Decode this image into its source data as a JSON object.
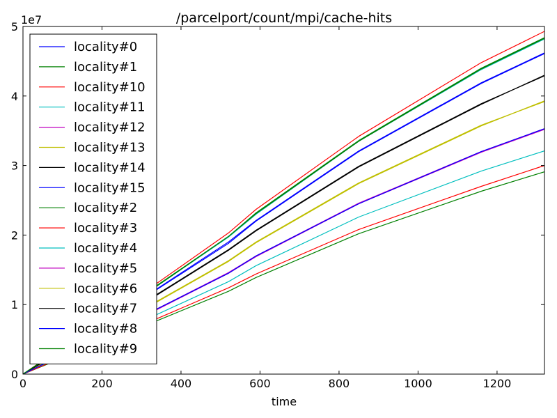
{
  "chart_data": {
    "type": "line",
    "title": "/parcelport/count/mpi/cache-hits",
    "xlabel": "time",
    "ylabel": "",
    "y_offset_label": "1e7",
    "xlim": [
      0,
      1320
    ],
    "ylim": [
      0,
      50000000
    ],
    "y_tick_scale": 10000000,
    "xticks": [
      0,
      200,
      400,
      600,
      800,
      1000,
      1200
    ],
    "yticks": [
      0,
      10000000,
      20000000,
      30000000,
      40000000,
      50000000
    ],
    "xtick_labels": [
      "0",
      "200",
      "400",
      "600",
      "800",
      "1000",
      "1200"
    ],
    "ytick_labels": [
      "0",
      "1",
      "2",
      "3",
      "4",
      "5"
    ],
    "grid": false,
    "legend_position": "upper-left",
    "series": [
      {
        "name": "locality#0",
        "color": "#0000ff",
        "x": [
          0,
          100,
          340,
          520,
          590,
          850,
          1160,
          1320
        ],
        "y": [
          0,
          3600000,
          12200000,
          18800000,
          22000000,
          32000000,
          41800000,
          46100000
        ]
      },
      {
        "name": "locality#1",
        "color": "#008000",
        "x": [
          0,
          100,
          340,
          520,
          590,
          850,
          1160,
          1320
        ],
        "y": [
          0,
          3800000,
          12800000,
          19800000,
          23200000,
          33600000,
          44000000,
          48400000
        ]
      },
      {
        "name": "locality#10",
        "color": "#ff0000",
        "x": [
          0,
          100,
          340,
          520,
          590,
          850,
          1160,
          1320
        ],
        "y": [
          0,
          3900000,
          13100000,
          20300000,
          23700000,
          34200000,
          44800000,
          49300000
        ]
      },
      {
        "name": "locality#11",
        "color": "#00bfbf",
        "x": [
          0,
          100,
          340,
          520,
          590,
          850,
          1160,
          1320
        ],
        "y": [
          0,
          2600000,
          8600000,
          13300000,
          15600000,
          22600000,
          29200000,
          32100000
        ]
      },
      {
        "name": "locality#12",
        "color": "#bf00bf",
        "x": [
          0,
          100,
          340,
          520,
          590,
          850,
          1160,
          1320
        ],
        "y": [
          0,
          2800000,
          9400000,
          14600000,
          17000000,
          24600000,
          32000000,
          35300000
        ]
      },
      {
        "name": "locality#13",
        "color": "#bfbf00",
        "x": [
          0,
          100,
          340,
          520,
          590,
          850,
          1160,
          1320
        ],
        "y": [
          0,
          3100000,
          10500000,
          16300000,
          19000000,
          27500000,
          35800000,
          39200000
        ]
      },
      {
        "name": "locality#14",
        "color": "#000000",
        "x": [
          0,
          100,
          340,
          520,
          590,
          850,
          1160,
          1320
        ],
        "y": [
          0,
          3400000,
          11400000,
          17800000,
          20600000,
          29800000,
          38800000,
          43000000
        ]
      },
      {
        "name": "locality#15",
        "color": "#0000ff",
        "x": [
          0,
          100,
          340,
          520,
          590,
          850,
          1160,
          1320
        ],
        "y": [
          0,
          3700000,
          12300000,
          19000000,
          22100000,
          32100000,
          41900000,
          46200000
        ]
      },
      {
        "name": "locality#2",
        "color": "#008000",
        "x": [
          0,
          100,
          340,
          520,
          590,
          850,
          1160,
          1320
        ],
        "y": [
          0,
          2300000,
          7700000,
          11900000,
          13900000,
          20200000,
          26300000,
          29100000
        ]
      },
      {
        "name": "locality#3",
        "color": "#ff0000",
        "x": [
          0,
          100,
          340,
          520,
          590,
          850,
          1160,
          1320
        ],
        "y": [
          0,
          2400000,
          8000000,
          12400000,
          14400000,
          20800000,
          27000000,
          30000000
        ]
      },
      {
        "name": "locality#4",
        "color": "#00bfbf",
        "x": [
          0,
          100,
          340,
          520,
          590,
          850,
          1160,
          1320
        ],
        "y": [
          0,
          3800000,
          12700000,
          19700000,
          23000000,
          33500000,
          43800000,
          48200000
        ]
      },
      {
        "name": "locality#5",
        "color": "#bf00bf",
        "x": [
          0,
          100,
          340,
          520,
          590,
          850,
          1160,
          1320
        ],
        "y": [
          0,
          2800000,
          9300000,
          14500000,
          16900000,
          24500000,
          31900000,
          35200000
        ]
      },
      {
        "name": "locality#6",
        "color": "#bfbf00",
        "x": [
          0,
          100,
          340,
          520,
          590,
          850,
          1160,
          1320
        ],
        "y": [
          0,
          3100000,
          10400000,
          16200000,
          18900000,
          27400000,
          35700000,
          39300000
        ]
      },
      {
        "name": "locality#7",
        "color": "#000000",
        "x": [
          0,
          100,
          340,
          520,
          590,
          850,
          1160,
          1320
        ],
        "y": [
          0,
          3400000,
          11500000,
          17900000,
          20700000,
          29900000,
          38900000,
          42900000
        ]
      },
      {
        "name": "locality#8",
        "color": "#0000ff",
        "x": [
          0,
          100,
          340,
          520,
          590,
          850,
          1160,
          1320
        ],
        "y": [
          0,
          2800000,
          9400000,
          14500000,
          17000000,
          24500000,
          32000000,
          35300000
        ]
      },
      {
        "name": "locality#9",
        "color": "#008000",
        "x": [
          0,
          100,
          340,
          520,
          590,
          850,
          1160,
          1320
        ],
        "y": [
          0,
          3800000,
          12700000,
          19800000,
          23100000,
          33500000,
          43900000,
          48300000
        ]
      }
    ]
  }
}
